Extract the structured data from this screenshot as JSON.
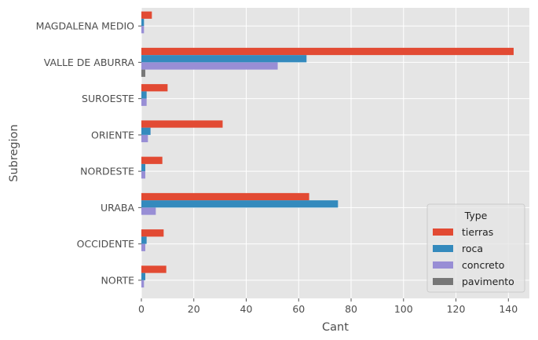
{
  "chart_data": {
    "type": "bar",
    "orientation": "horizontal",
    "categories": [
      "MAGDALENA MEDIO",
      "VALLE DE ABURRA",
      "SUROESTE",
      "ORIENTE",
      "NORDESTE",
      "URABA",
      "OCCIDENTE",
      "NORTE"
    ],
    "series": [
      {
        "name": "tierras",
        "values": [
          4,
          142,
          10,
          31,
          8,
          64,
          8.5,
          9.5
        ]
      },
      {
        "name": "roca",
        "values": [
          1,
          63,
          2,
          3.5,
          1.5,
          75,
          2,
          1.5
        ]
      },
      {
        "name": "concreto",
        "values": [
          1,
          52,
          2,
          2.5,
          1.5,
          5.5,
          1.5,
          1
        ]
      },
      {
        "name": "pavimento",
        "values": [
          0,
          1.5,
          0,
          0,
          0,
          0,
          0,
          0
        ]
      }
    ],
    "colors": {
      "tierras": "#E24A33",
      "roca": "#348ABD",
      "concreto": "#988ED5",
      "pavimento": "#777777"
    },
    "xlabel": "Cant",
    "ylabel": "Subregion",
    "xlim": [
      0,
      148
    ],
    "xticks": [
      0,
      20,
      40,
      60,
      80,
      100,
      120,
      140
    ],
    "legend": {
      "title": "Type",
      "position": "bottom-right"
    },
    "grid": true,
    "style": "ggplot"
  }
}
